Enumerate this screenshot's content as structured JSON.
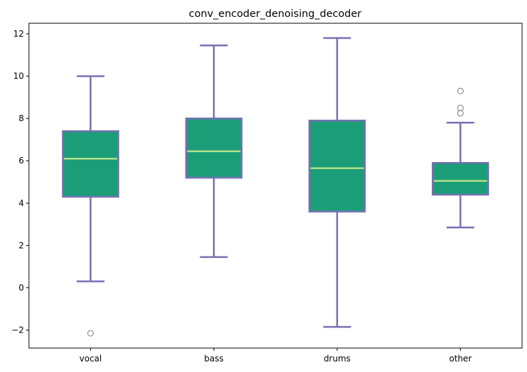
{
  "chart_data": {
    "type": "box",
    "title": "conv_encoder_denoising_decoder",
    "xlabel": "",
    "ylabel": "",
    "categories": [
      "vocal",
      "bass",
      "drums",
      "other"
    ],
    "ylim": [
      -2.85,
      12.5
    ],
    "yticks": [
      -2,
      0,
      2,
      4,
      6,
      8,
      10,
      12
    ],
    "ytick_labels": [
      "−2",
      "0",
      "2",
      "4",
      "6",
      "8",
      "10",
      "12"
    ],
    "grid": false,
    "boxes": [
      {
        "category": "vocal",
        "whisker_low": 0.3,
        "q1": 4.3,
        "median": 6.1,
        "q3": 7.4,
        "whisker_high": 10.0,
        "outliers": [
          -2.15
        ]
      },
      {
        "category": "bass",
        "whisker_low": 1.45,
        "q1": 5.2,
        "median": 6.45,
        "q3": 8.0,
        "whisker_high": 11.45,
        "outliers": []
      },
      {
        "category": "drums",
        "whisker_low": -1.85,
        "q1": 3.6,
        "median": 5.65,
        "q3": 7.9,
        "whisker_high": 11.8,
        "outliers": []
      },
      {
        "category": "other",
        "whisker_low": 2.85,
        "q1": 4.4,
        "median": 5.05,
        "q3": 5.9,
        "whisker_high": 7.8,
        "outliers": [
          8.25,
          8.5,
          9.3
        ]
      }
    ],
    "colors": {
      "box_fill": "#1b9e77",
      "box_edge": "#7570b3",
      "median": "#b2df8a",
      "outlier_edge": "#777777"
    }
  }
}
